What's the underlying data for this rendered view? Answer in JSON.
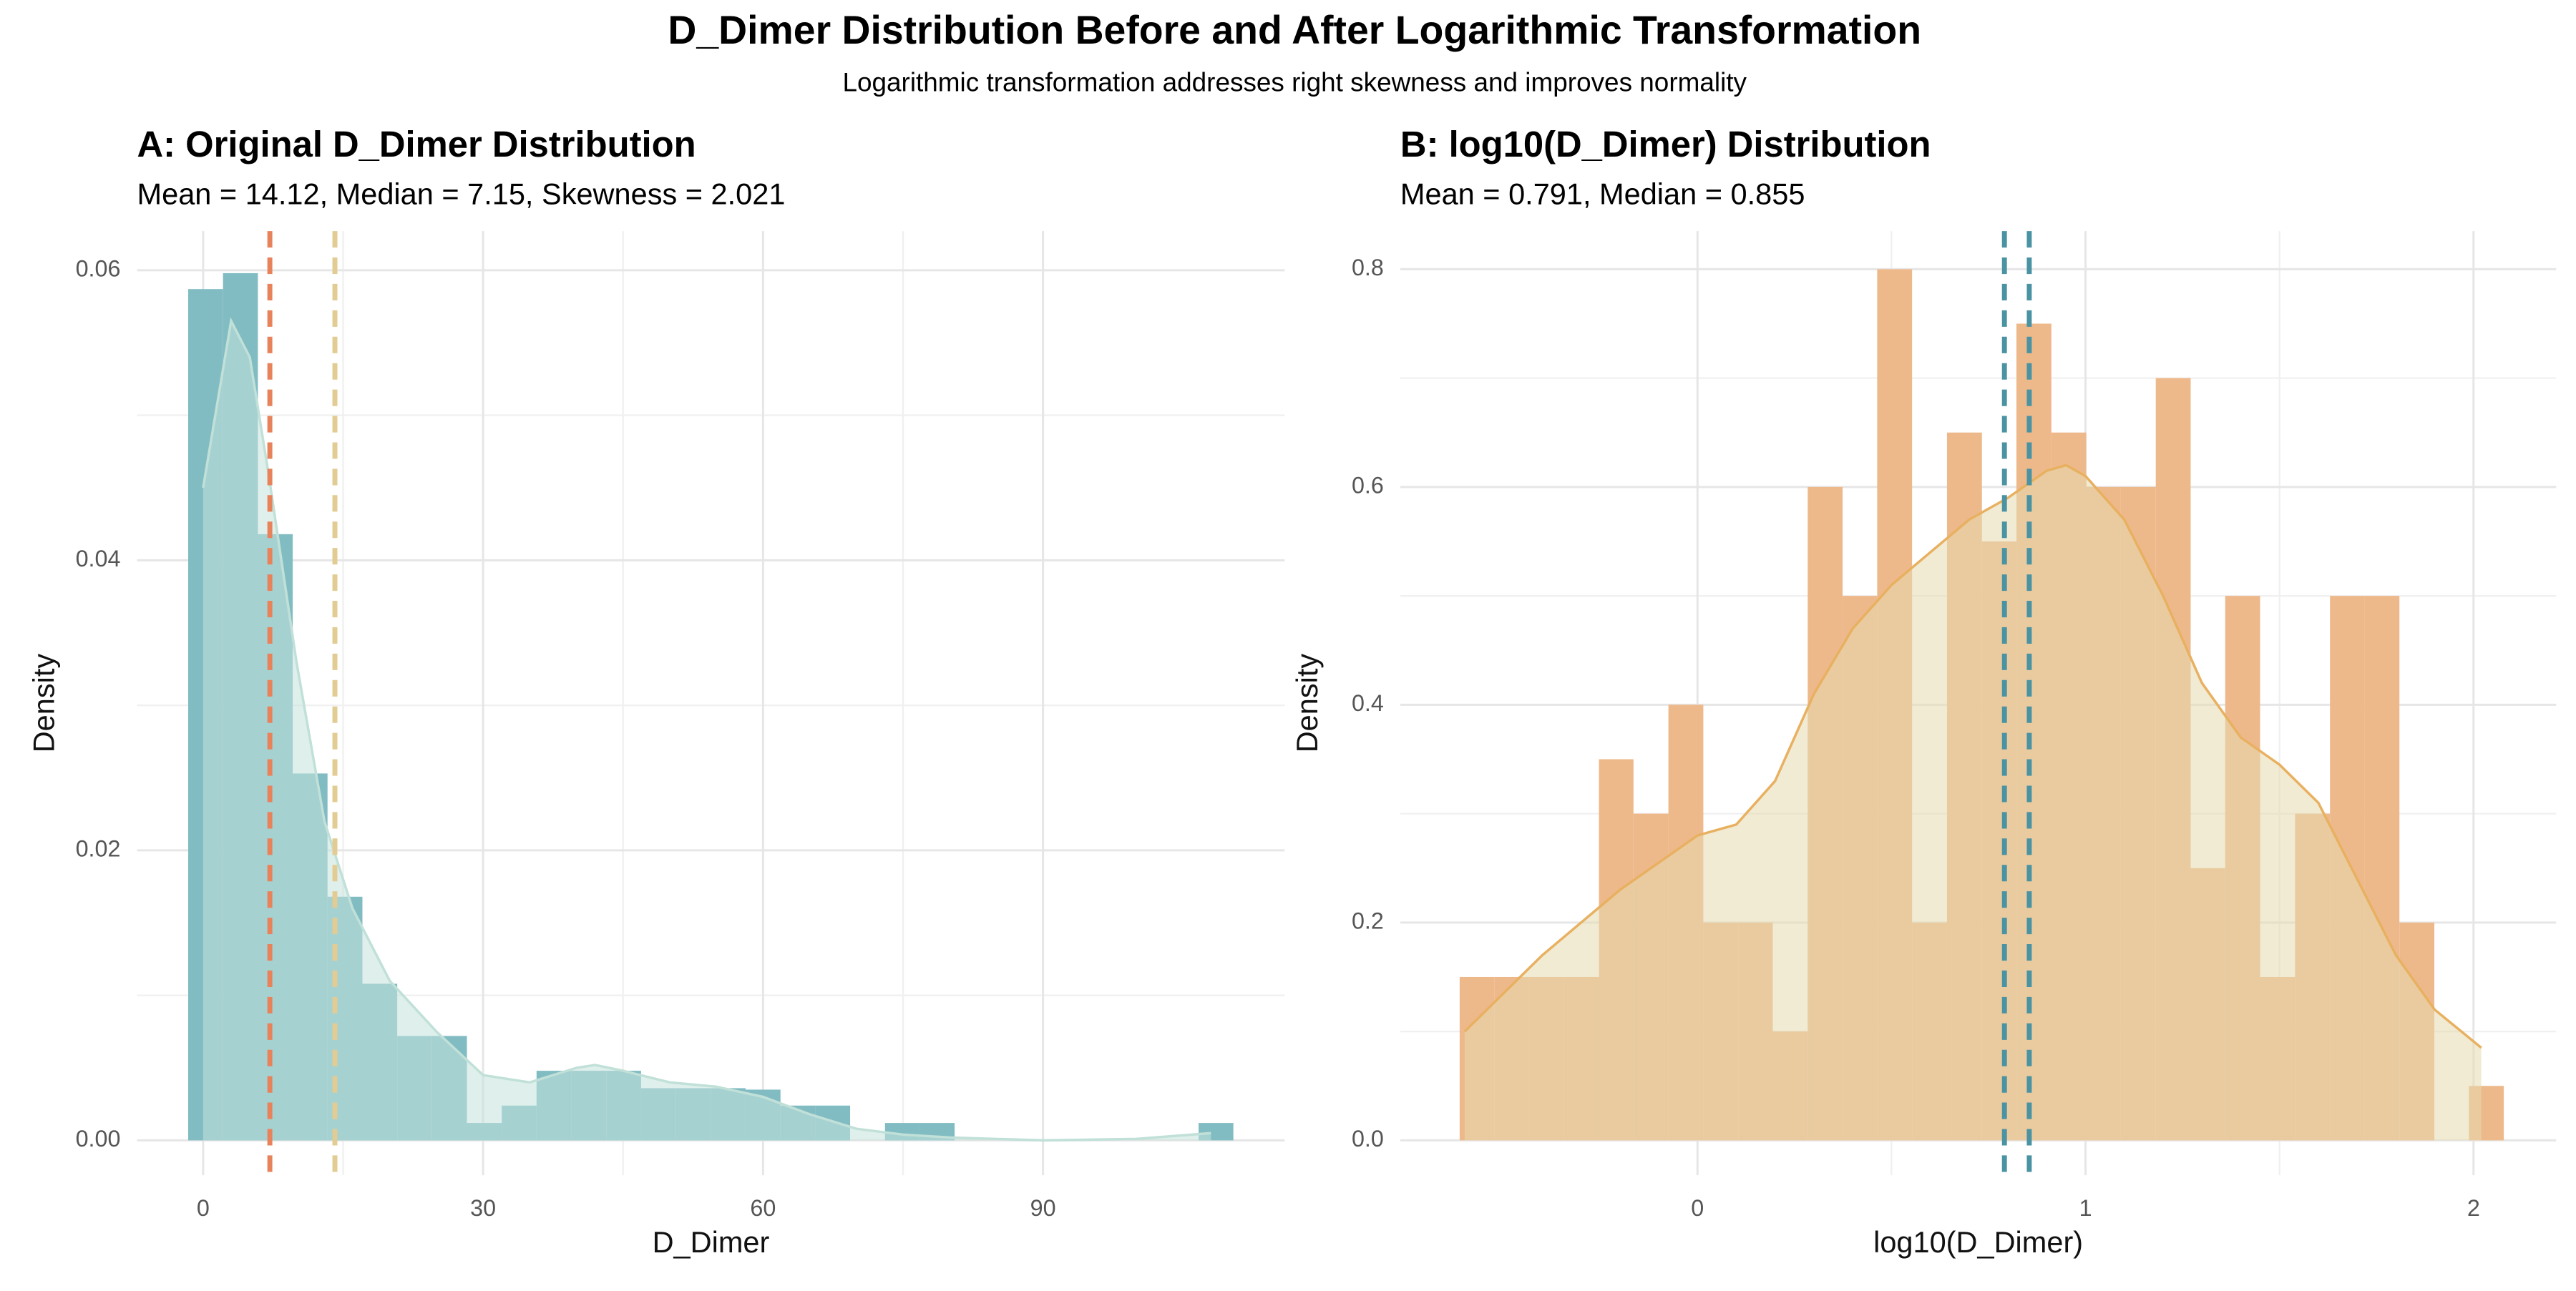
{
  "title": "D_Dimer Distribution Before and After Logarithmic Transformation",
  "subtitle": "Logarithmic transformation addresses right skewness and improves normality",
  "chart_data": [
    {
      "type": "histogram",
      "title": "A: Original D_Dimer Distribution",
      "subtitle": "Mean = 14.12, Median = 7.15, Skewness = 2.021",
      "x_label": "D_Dimer",
      "y_label": "Density",
      "bins": [
        -1.6,
        2.13,
        5.87,
        9.6,
        13.33,
        17.07,
        20.8,
        24.53,
        28.27,
        32,
        35.73,
        39.47,
        43.2,
        46.93,
        50.67,
        54.4,
        58.13,
        61.87,
        65.6,
        69.33,
        73.07,
        76.8,
        80.53,
        84.27,
        88,
        91.73,
        95.47,
        99.2,
        102.93,
        106.67,
        110.4
      ],
      "values": [
        0.0587,
        0.0598,
        0.0418,
        0.0253,
        0.0168,
        0.0108,
        0.0072,
        0.0072,
        0.0012,
        0.0024,
        0.0048,
        0.0048,
        0.0048,
        0.0036,
        0.0036,
        0.0036,
        0.0035,
        0.0024,
        0.0024,
        0,
        0.0012,
        0.0012,
        0,
        0,
        0,
        0,
        0,
        0,
        0,
        0.0012
      ],
      "color": "#82bcc3",
      "density": {
        "x": [
          0,
          3,
          5,
          7,
          10,
          13,
          16,
          20,
          25,
          30,
          35,
          40,
          42,
          45,
          50,
          55,
          60,
          65,
          70,
          75,
          80,
          90,
          100,
          108
        ],
        "values": [
          0.045,
          0.0565,
          0.054,
          0.046,
          0.033,
          0.022,
          0.016,
          0.011,
          0.0075,
          0.0045,
          0.004,
          0.005,
          0.0052,
          0.0048,
          0.004,
          0.0037,
          0.003,
          0.0018,
          0.0008,
          0.0004,
          0.0002,
          0,
          0.0001,
          0.0005
        ],
        "fill": "#c4e2dd",
        "color": "#c0e0d8"
      },
      "vlines": [
        {
          "value": 7.15,
          "color": "#e8825a"
        },
        {
          "value": 14.12,
          "color": "#e3cc94"
        }
      ],
      "xlim": [
        -7.08,
        115.9
      ],
      "ylim": [
        -0.0024,
        0.0627
      ],
      "xticks": [
        0,
        30,
        60,
        90
      ],
      "yticks": [
        {
          "value": 0,
          "label": "0.00"
        },
        0.02,
        0.04,
        0.06
      ],
      "grid": true
    },
    {
      "type": "histogram",
      "title": "B: log10(D_Dimer) Distribution",
      "subtitle": "Mean = 0.791, Median = 0.855",
      "x_label": "log10(D_Dimer)",
      "y_label": "Density",
      "bins": [
        -0.613,
        -0.523,
        -0.434,
        -0.344,
        -0.254,
        -0.165,
        -0.075,
        0.015,
        0.105,
        0.194,
        0.284,
        0.374,
        0.463,
        0.553,
        0.643,
        0.733,
        0.822,
        0.912,
        1.002,
        1.091,
        1.181,
        1.271,
        1.36,
        1.45,
        1.54,
        1.63,
        1.719,
        1.809,
        1.899,
        1.988,
        2.078
      ],
      "values": [
        0.15,
        0.15,
        0.15,
        0.15,
        0.35,
        0.3,
        0.4,
        0.2,
        0.2,
        0.1,
        0.6,
        0.5,
        0.8,
        0.2,
        0.65,
        0.55,
        0.75,
        0.65,
        0.6,
        0.6,
        0.7,
        0.25,
        0.5,
        0.15,
        0.3,
        0.5,
        0.5,
        0.2,
        0,
        0.05
      ],
      "color": "#eeb98a",
      "density": {
        "x": [
          -0.6,
          -0.4,
          -0.2,
          0,
          0.1,
          0.2,
          0.3,
          0.4,
          0.5,
          0.6,
          0.7,
          0.8,
          0.9,
          0.95,
          1,
          1.1,
          1.2,
          1.3,
          1.4,
          1.5,
          1.6,
          1.7,
          1.8,
          1.9,
          2.02
        ],
        "values": [
          0.1,
          0.17,
          0.23,
          0.28,
          0.29,
          0.33,
          0.41,
          0.47,
          0.51,
          0.54,
          0.57,
          0.59,
          0.615,
          0.62,
          0.61,
          0.57,
          0.5,
          0.42,
          0.37,
          0.345,
          0.31,
          0.24,
          0.17,
          0.12,
          0.085
        ],
        "fill": "#e6dab0",
        "color": "#e8b060"
      },
      "vlines": [
        {
          "value": 0.791,
          "color": "#4a93a3"
        },
        {
          "value": 0.855,
          "color": "#4a93a3"
        }
      ],
      "xlim": [
        -0.766,
        2.213
      ],
      "ylim": [
        -0.032,
        0.835
      ],
      "xticks": [
        0,
        1,
        2
      ],
      "yticks": [
        {
          "value": 0,
          "label": "0.0"
        },
        0.2,
        0.4,
        0.6,
        0.8
      ],
      "grid": true
    }
  ]
}
